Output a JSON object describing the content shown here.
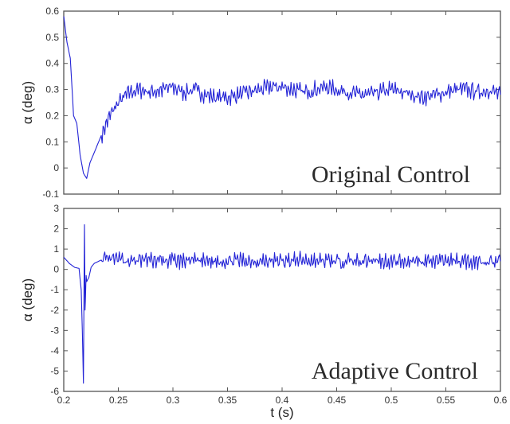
{
  "colors": {
    "series": "#2323d6"
  },
  "chart_data": [
    {
      "type": "line",
      "title": "Original Control",
      "xlabel": "",
      "ylabel": "α (deg)",
      "xlim": [
        0.2,
        0.6
      ],
      "ylim": [
        -0.1,
        0.6
      ],
      "grid": false,
      "x_ticks": [],
      "y_ticks": [
        "0.6",
        "0.5",
        "0.4",
        "0.3",
        "0.2",
        "0.1",
        "0",
        "-0.1"
      ],
      "series": [
        {
          "x": [
            0.2,
            0.203,
            0.206,
            0.209,
            0.212,
            0.215,
            0.218,
            0.221,
            0.224,
            0.228,
            0.232,
            0.236,
            0.24,
            0.245,
            0.25,
            0.255,
            0.26,
            0.27,
            0.28,
            0.29,
            0.3,
            0.31,
            0.32,
            0.33,
            0.34,
            0.35,
            0.36,
            0.37,
            0.38,
            0.39,
            0.4,
            0.41,
            0.42,
            0.43,
            0.44,
            0.45,
            0.46,
            0.47,
            0.48,
            0.49,
            0.5,
            0.51,
            0.52,
            0.53,
            0.54,
            0.55,
            0.56,
            0.57,
            0.58,
            0.59,
            0.6
          ],
          "y": [
            0.58,
            0.48,
            0.42,
            0.2,
            0.17,
            0.05,
            -0.02,
            -0.04,
            0.02,
            0.06,
            0.1,
            0.14,
            0.18,
            0.22,
            0.25,
            0.27,
            0.29,
            0.3,
            0.29,
            0.3,
            0.31,
            0.29,
            0.3,
            0.28,
            0.27,
            0.27,
            0.28,
            0.29,
            0.3,
            0.31,
            0.31,
            0.3,
            0.29,
            0.3,
            0.31,
            0.3,
            0.29,
            0.28,
            0.28,
            0.29,
            0.3,
            0.29,
            0.28,
            0.27,
            0.28,
            0.29,
            0.3,
            0.3,
            0.29,
            0.3,
            0.28
          ]
        }
      ]
    },
    {
      "type": "line",
      "title": "Adaptive Control",
      "xlabel": "t (s)",
      "ylabel": "α (deg)",
      "xlim": [
        0.2,
        0.6
      ],
      "ylim": [
        -6,
        3
      ],
      "grid": false,
      "x_ticks": [
        "0.2",
        "0.25",
        "0.3",
        "0.35",
        "0.4",
        "0.45",
        "0.5",
        "0.55",
        "0.6"
      ],
      "y_ticks": [
        "3",
        "2",
        "1",
        "0",
        "-1",
        "-2",
        "-3",
        "-4",
        "-5",
        "-6"
      ],
      "series": [
        {
          "x": [
            0.2,
            0.205,
            0.21,
            0.214,
            0.216,
            0.217,
            0.218,
            0.219,
            0.2195,
            0.22,
            0.2205,
            0.221,
            0.223,
            0.225,
            0.228,
            0.232,
            0.236,
            0.24,
            0.25,
            0.26,
            0.27,
            0.28,
            0.29,
            0.3,
            0.32,
            0.34,
            0.36,
            0.38,
            0.4,
            0.42,
            0.44,
            0.46,
            0.48,
            0.5,
            0.52,
            0.54,
            0.56,
            0.58,
            0.6
          ],
          "y": [
            0.6,
            0.3,
            0.1,
            0.05,
            -1.0,
            -3.0,
            -5.6,
            2.2,
            -2.0,
            -1.2,
            -0.3,
            -0.6,
            -0.4,
            0.1,
            0.3,
            0.4,
            0.5,
            0.45,
            0.5,
            0.4,
            0.45,
            0.5,
            0.4,
            0.45,
            0.42,
            0.4,
            0.45,
            0.4,
            0.42,
            0.45,
            0.4,
            0.42,
            0.45,
            0.4,
            0.42,
            0.4,
            0.45,
            0.4,
            0.4
          ]
        }
      ]
    }
  ]
}
